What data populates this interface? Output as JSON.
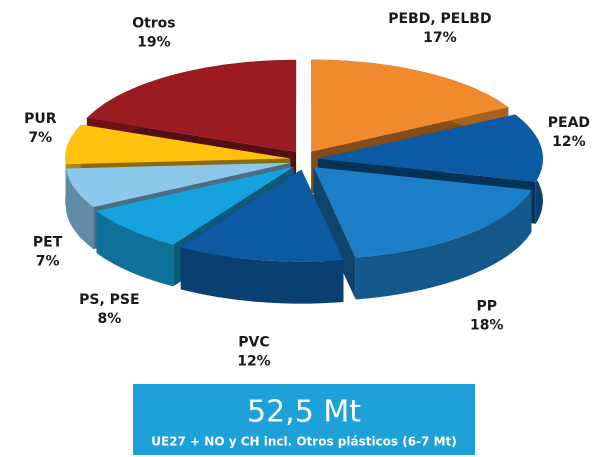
{
  "chart_data": {
    "type": "pie3d",
    "categories": [
      "PEBD, PELBD",
      "PEAD",
      "PP",
      "PVC",
      "PS, PSE",
      "PET",
      "PUR",
      "Otros"
    ],
    "values": [
      17,
      12,
      18,
      12,
      8,
      7,
      7,
      19
    ],
    "value_labels": [
      "17%",
      "12%",
      "18%",
      "12%",
      "8%",
      "7%",
      "7%",
      "19%"
    ],
    "colors": [
      "#f08a2c",
      "#0b5ba4",
      "#1b7ec6",
      "#0d5aa2",
      "#16a2dc",
      "#8cc8ec",
      "#ffc20e",
      "#9a1b20"
    ],
    "annotations": [
      "52,5 Mt",
      "UE27 + NO y CH incl. Otros plásticos (6-7 Mt)"
    ]
  }
}
